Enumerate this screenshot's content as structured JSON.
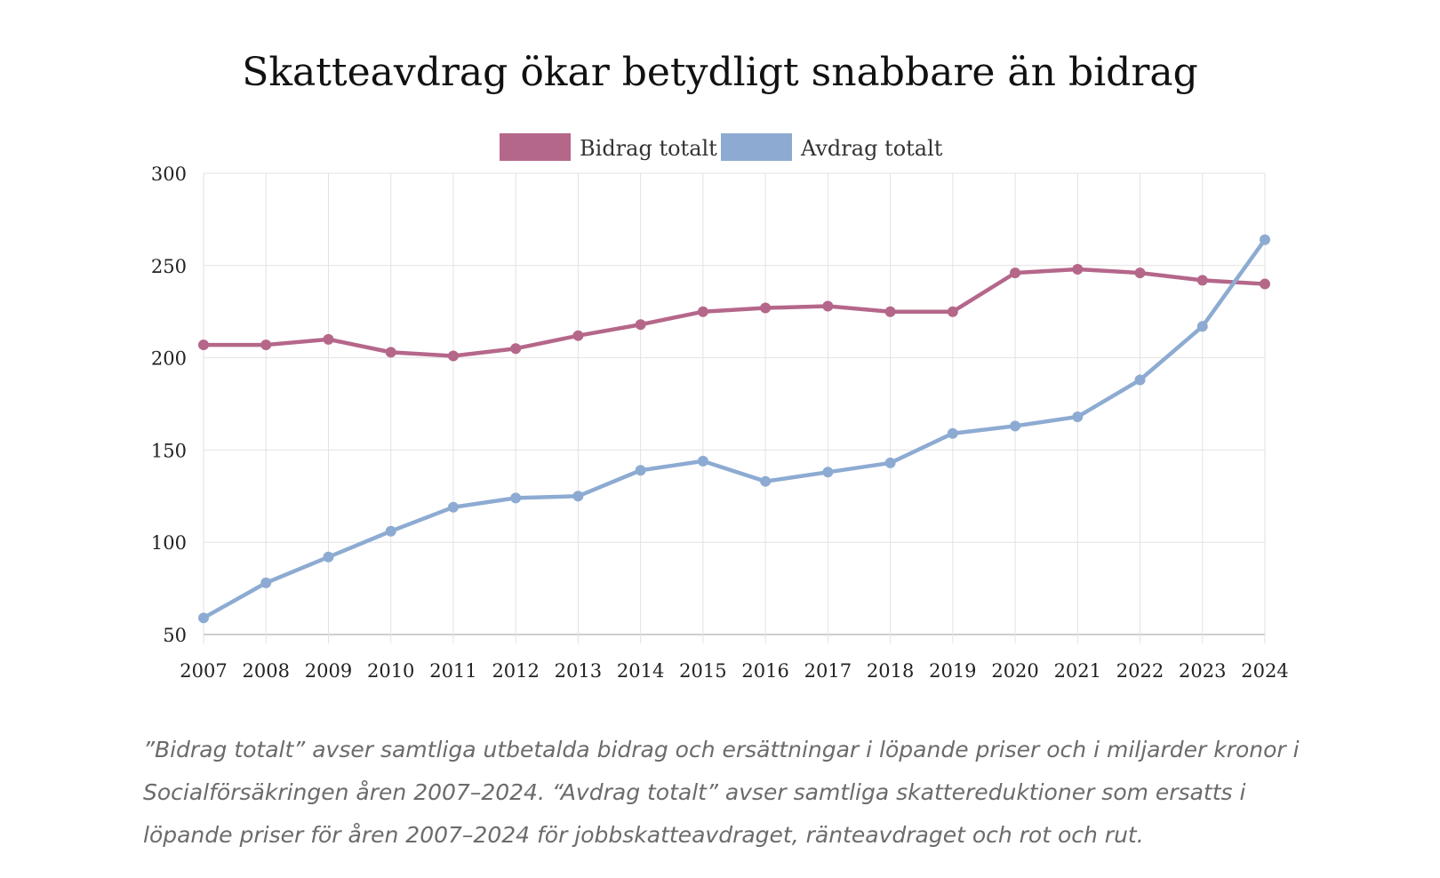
{
  "chart_data": {
    "type": "line",
    "title": "Skatteavdrag ökar betydligt snabbare än bidrag",
    "x": [
      "2007",
      "2008",
      "2009",
      "2010",
      "2011",
      "2012",
      "2013",
      "2014",
      "2015",
      "2016",
      "2017",
      "2018",
      "2019",
      "2020",
      "2021",
      "2022",
      "2023",
      "2024"
    ],
    "series": [
      {
        "name": "Bidrag totalt",
        "color": "#b5678a",
        "values": [
          207,
          207,
          210,
          203,
          201,
          205,
          212,
          218,
          225,
          227,
          228,
          225,
          225,
          246,
          248,
          246,
          242,
          240
        ]
      },
      {
        "name": "Avdrag totalt",
        "color": "#8dabd2",
        "values": [
          59,
          78,
          92,
          106,
          119,
          124,
          125,
          139,
          144,
          133,
          138,
          143,
          159,
          163,
          168,
          188,
          217,
          264
        ]
      }
    ],
    "ylim": [
      50,
      300
    ],
    "yticks": [
      50,
      100,
      150,
      200,
      250,
      300
    ],
    "grid": true,
    "legend": "top-center"
  },
  "caption": "”Bidrag totalt” avser samtliga utbetalda bidrag och ersättningar i löpande priser och i miljarder kronor i Socialförsäkringen åren 2007–2024. “Avdrag totalt” avser samtliga skattereduktioner som ersatts i löpande priser för åren 2007–2024 för jobbskatteavdraget, ränteavdraget och rot och rut."
}
